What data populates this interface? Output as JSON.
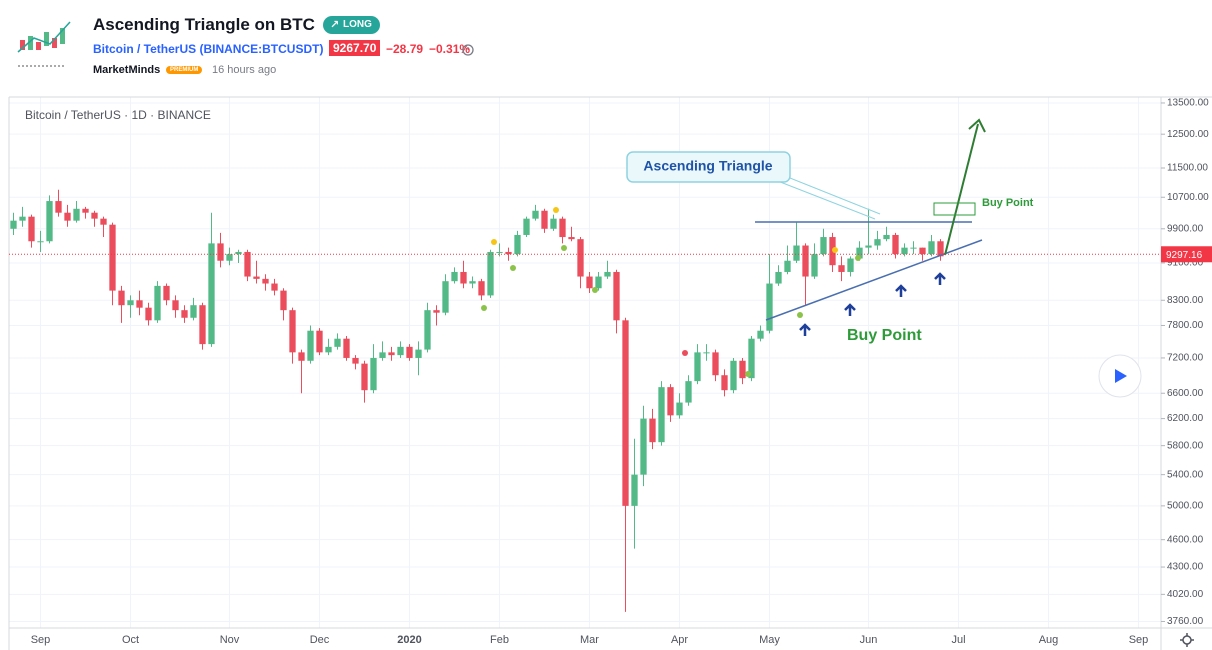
{
  "header": {
    "title": "Ascending Triangle on BTC",
    "badge": "LONG",
    "symbol": "Bitcoin / TetherUS (BINANCE:BTCUSDT)",
    "price": "9267.70",
    "change": "−28.79",
    "change_percent": "−0.31%",
    "author": "MarketMinds",
    "author_badge": "PREMIUM",
    "time": "16 hours ago"
  },
  "chart_data": {
    "type": "candlestick",
    "subtitle": "Bitcoin / TetherUS · 1D · BINANCE",
    "categories": [
      null,
      null,
      null,
      "Sep",
      null,
      null,
      null,
      null,
      null,
      null,
      null,
      null,
      null,
      "Oct",
      null,
      null,
      null,
      null,
      null,
      null,
      null,
      null,
      null,
      null,
      "Nov",
      null,
      null,
      null,
      null,
      null,
      null,
      null,
      null,
      null,
      "Dec",
      null,
      null,
      null,
      null,
      null,
      null,
      null,
      null,
      null,
      "2020",
      null,
      null,
      null,
      null,
      null,
      null,
      null,
      null,
      null,
      "Feb",
      null,
      null,
      null,
      null,
      null,
      null,
      null,
      null,
      null,
      "Mar",
      null,
      null,
      null,
      null,
      null,
      null,
      null,
      null,
      null,
      "Apr",
      null,
      null,
      null,
      null,
      null,
      null,
      null,
      null,
      null,
      "May",
      null,
      null,
      null,
      null,
      null,
      null,
      null,
      null,
      null,
      null,
      "Jun",
      null,
      null,
      null,
      null,
      null,
      null,
      null,
      null,
      null,
      "Jul",
      null,
      null,
      null,
      null,
      null,
      null,
      null,
      null,
      null,
      "Aug",
      null,
      null,
      null,
      null,
      null,
      null,
      null,
      null,
      null,
      "Sep",
      null,
      null
    ],
    "open": [
      9900,
      10100,
      10200,
      9600,
      9600,
      10600,
      10300,
      10100,
      10400,
      10300,
      10150,
      10000,
      8500,
      8200,
      8300,
      8150,
      7900,
      8600,
      8300,
      8100,
      7950,
      8200,
      7450,
      9550,
      9150,
      9300,
      9350,
      8800,
      8750,
      8650,
      8500,
      8100,
      7300,
      7150,
      7700,
      7300,
      7400,
      7550,
      7200,
      7100,
      6650,
      7200,
      7300,
      7250,
      7400,
      7200,
      7350,
      8100,
      8050,
      8700,
      8900,
      8650,
      8700,
      8400,
      9350,
      9350,
      9300,
      9750,
      10150,
      10350,
      9900,
      10150,
      9700,
      9650,
      8800,
      8550,
      8800,
      8900,
      7900,
      5000,
      5400,
      6200,
      5850,
      6700,
      6250,
      6450,
      6800,
      7300,
      7300,
      6900,
      6650,
      7150,
      6850,
      7550,
      7700,
      8650,
      8900,
      9150,
      9500,
      8800,
      9300,
      9700,
      9050,
      8900,
      9200,
      9450,
      9500,
      9650,
      9750,
      9300,
      9450,
      9450,
      9300,
      9600,
      null,
      null,
      null,
      null,
      null,
      null,
      null,
      null,
      null,
      null,
      null,
      null,
      null,
      null,
      null,
      null,
      null,
      null,
      null,
      null,
      null,
      null,
      null,
      null
    ],
    "high": [
      10300,
      10450,
      10250,
      9850,
      10750,
      10900,
      10500,
      10600,
      10450,
      10350,
      10200,
      10050,
      8600,
      8400,
      8500,
      8250,
      8700,
      8650,
      8400,
      8200,
      8350,
      8250,
      10300,
      9800,
      9450,
      9400,
      9400,
      9150,
      8850,
      8750,
      8550,
      8150,
      7350,
      7800,
      7750,
      7550,
      7650,
      7600,
      7250,
      7150,
      7450,
      7500,
      7400,
      7500,
      7450,
      7500,
      8250,
      8200,
      8850,
      9000,
      9150,
      8800,
      8750,
      9400,
      9550,
      9450,
      9850,
      10200,
      10500,
      10400,
      10250,
      10200,
      9950,
      9700,
      8900,
      8900,
      9150,
      8950,
      7950,
      5900,
      6400,
      6350,
      6800,
      6750,
      6600,
      6900,
      7450,
      7450,
      7350,
      7000,
      7200,
      7200,
      7600,
      7800,
      9300,
      9050,
      9500,
      10050,
      9550,
      9550,
      9900,
      9800,
      9250,
      9250,
      9600,
      10400,
      9850,
      9950,
      9800,
      9550,
      9600,
      9450,
      9750,
      9650,
      null,
      null,
      null,
      null,
      null,
      null,
      null,
      null,
      null,
      null,
      null,
      null,
      null,
      null,
      null,
      null,
      null,
      null,
      null,
      null,
      null,
      null,
      null,
      null
    ],
    "low": [
      9750,
      9950,
      9450,
      9350,
      9550,
      10200,
      9950,
      10050,
      10150,
      9950,
      9700,
      8200,
      7850,
      7950,
      8000,
      7800,
      7850,
      8200,
      7950,
      7850,
      7900,
      7350,
      7400,
      9000,
      9050,
      9100,
      8700,
      8650,
      8500,
      8400,
      7900,
      7100,
      6600,
      7100,
      7250,
      7250,
      7350,
      7150,
      7000,
      6450,
      6600,
      7150,
      7150,
      7200,
      7150,
      6900,
      7300,
      7800,
      8000,
      8650,
      8550,
      8550,
      8300,
      8350,
      9250,
      9150,
      9250,
      9700,
      10100,
      9800,
      9850,
      9550,
      9600,
      8550,
      8450,
      8500,
      8750,
      7650,
      3850,
      4500,
      5250,
      5750,
      5800,
      6150,
      6200,
      6400,
      6750,
      7150,
      6800,
      6550,
      6600,
      6750,
      6800,
      7500,
      7650,
      8600,
      8850,
      9100,
      8200,
      8750,
      9250,
      8900,
      8700,
      8800,
      9150,
      9300,
      9400,
      9600,
      9200,
      9250,
      9300,
      9150,
      9250,
      9150,
      null,
      null,
      null,
      null,
      null,
      null,
      null,
      null,
      null,
      null,
      null,
      null,
      null,
      null,
      null,
      null,
      null,
      null,
      null,
      null,
      null,
      null,
      null,
      null
    ],
    "close": [
      10100,
      10200,
      9600,
      9600,
      10600,
      10300,
      10100,
      10400,
      10300,
      10150,
      10000,
      8500,
      8200,
      8300,
      8150,
      7900,
      8600,
      8300,
      8100,
      7950,
      8200,
      7450,
      9550,
      9150,
      9300,
      9350,
      8800,
      8750,
      8650,
      8500,
      8100,
      7300,
      7150,
      7700,
      7300,
      7400,
      7550,
      7200,
      7100,
      6650,
      7200,
      7300,
      7250,
      7400,
      7200,
      7350,
      8100,
      8050,
      8700,
      8900,
      8650,
      8700,
      8400,
      9350,
      9350,
      9300,
      9750,
      10150,
      10350,
      9900,
      10150,
      9700,
      9650,
      8800,
      8550,
      8800,
      8900,
      7900,
      5000,
      5400,
      6200,
      5850,
      6700,
      6250,
      6450,
      6800,
      7300,
      7300,
      6900,
      6650,
      7150,
      6850,
      7550,
      7700,
      8650,
      8900,
      9150,
      9500,
      8800,
      9300,
      9700,
      9050,
      8900,
      9200,
      9450,
      9500,
      9650,
      9750,
      9300,
      9450,
      9450,
      9300,
      9600,
      9250,
      null,
      null,
      null,
      null,
      null,
      null,
      null,
      null,
      null,
      null,
      null,
      null,
      null,
      null,
      null,
      null,
      null,
      null,
      null,
      null,
      null,
      null,
      null,
      null
    ],
    "up_color": "#53b987",
    "down_color": "#eb4d5c",
    "log_scale": true,
    "grid": true,
    "ylim": [
      3700,
      13700
    ],
    "yticks": [
      {
        "value": 3760,
        "label": "3760.00"
      },
      {
        "value": 4020,
        "label": "4020.00"
      },
      {
        "value": 4300,
        "label": "4300.00"
      },
      {
        "value": 4600,
        "label": "4600.00"
      },
      {
        "value": 5000,
        "label": "5000.00"
      },
      {
        "value": 5400,
        "label": "5400.00"
      },
      {
        "value": 5800,
        "label": "5800.00"
      },
      {
        "value": 6200,
        "label": "6200.00"
      },
      {
        "value": 6600,
        "label": "6600.00"
      },
      {
        "value": 7200,
        "label": "7200.00"
      },
      {
        "value": 7800,
        "label": "7800.00"
      },
      {
        "value": 8300,
        "label": "8300.00"
      },
      {
        "value": 9100,
        "label": "9100.00"
      },
      {
        "value": 9900,
        "label": "9900.00"
      },
      {
        "value": 10700,
        "label": "10700.00"
      },
      {
        "value": 11500,
        "label": "11500.00"
      },
      {
        "value": 12500,
        "label": "12500.00"
      },
      {
        "value": 13500,
        "label": "13500.00"
      }
    ],
    "last_price": 9297.16,
    "last_price_color": "#f23645",
    "annotations": [
      "Ascending Triangle",
      "Buy Point",
      "Buy Point"
    ]
  }
}
